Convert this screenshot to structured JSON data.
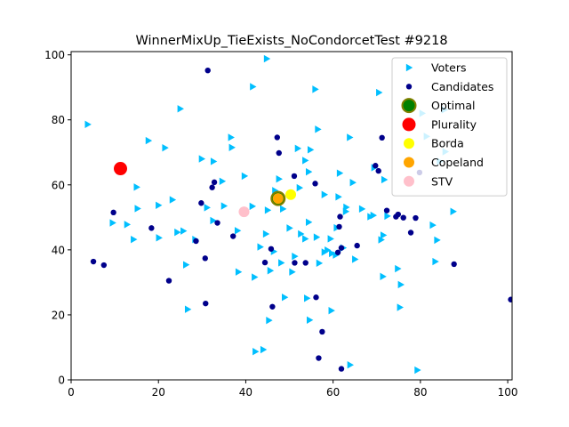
{
  "chart_data": {
    "type": "scatter",
    "title": "WinnerMixUp_TieExists_NoCondorcetTest #9218",
    "xlabel": "",
    "ylabel": "",
    "xlim": [
      0,
      101
    ],
    "ylim": [
      0,
      101
    ],
    "x_ticks": [
      0,
      20,
      40,
      60,
      80,
      100
    ],
    "y_ticks": [
      0,
      20,
      40,
      60,
      80,
      100
    ],
    "x_tick_labels": [
      "0",
      "20",
      "40",
      "60",
      "80",
      "100"
    ],
    "y_tick_labels": [
      "0",
      "20",
      "40",
      "60",
      "80",
      "100"
    ],
    "grid": false,
    "legend_position": "top-right",
    "series": [
      {
        "name": "Voters",
        "marker": "triangle-right",
        "color": "#00bfff",
        "points": [
          [
            3.8,
            78.6
          ],
          [
            9.5,
            48.3
          ],
          [
            12.8,
            47.8
          ],
          [
            14.3,
            43.2
          ],
          [
            15.0,
            59.3
          ],
          [
            15.2,
            52.7
          ],
          [
            17.7,
            73.6
          ],
          [
            20.0,
            53.7
          ],
          [
            20.1,
            43.7
          ],
          [
            21.5,
            71.4
          ],
          [
            23.2,
            55.4
          ],
          [
            24.3,
            45.4
          ],
          [
            25.0,
            83.4
          ],
          [
            25.7,
            45.8
          ],
          [
            26.3,
            35.4
          ],
          [
            26.7,
            21.7
          ],
          [
            28.4,
            43.2
          ],
          [
            29.9,
            68.0
          ],
          [
            31.1,
            53.0
          ],
          [
            32.6,
            67.2
          ],
          [
            32.5,
            49.0
          ],
          [
            34.6,
            61.1
          ],
          [
            35.0,
            53.5
          ],
          [
            36.6,
            74.6
          ],
          [
            36.8,
            71.5
          ],
          [
            38.1,
            45.9
          ],
          [
            38.3,
            33.2
          ],
          [
            39.7,
            62.7
          ],
          [
            41.6,
            90.2
          ],
          [
            41.5,
            53.4
          ],
          [
            42.2,
            8.7
          ],
          [
            42.0,
            31.6
          ],
          [
            43.3,
            40.9
          ],
          [
            44.0,
            9.3
          ],
          [
            44.6,
            44.9
          ],
          [
            44.8,
            98.8
          ],
          [
            45.0,
            52.2
          ],
          [
            45.3,
            18.3
          ],
          [
            45.6,
            33.6
          ],
          [
            46.7,
            58.2
          ],
          [
            46.4,
            39.5
          ],
          [
            47.6,
            61.8
          ],
          [
            48.5,
            52.6
          ],
          [
            48.9,
            25.4
          ],
          [
            48.1,
            36.0
          ],
          [
            50.0,
            46.7
          ],
          [
            50.6,
            33.2
          ],
          [
            51.2,
            38.0
          ],
          [
            51.9,
            71.2
          ],
          [
            52.3,
            59.1
          ],
          [
            52.6,
            44.9
          ],
          [
            53.6,
            67.5
          ],
          [
            53.6,
            43.4
          ],
          [
            54.0,
            25.1
          ],
          [
            54.4,
            48.5
          ],
          [
            54.6,
            18.4
          ],
          [
            54.4,
            64.0
          ],
          [
            54.8,
            70.8
          ],
          [
            55.9,
            89.4
          ],
          [
            56.2,
            43.9
          ],
          [
            56.5,
            77.1
          ],
          [
            56.8,
            35.9
          ],
          [
            58.0,
            39.3
          ],
          [
            58.0,
            57.0
          ],
          [
            58.7,
            39.9
          ],
          [
            59.4,
            43.4
          ],
          [
            59.6,
            21.3
          ],
          [
            59.7,
            38.9
          ],
          [
            60.6,
            38.4
          ],
          [
            60.8,
            46.8
          ],
          [
            61.2,
            56.3
          ],
          [
            61.5,
            63.6
          ],
          [
            62.3,
            40.6
          ],
          [
            62.9,
            51.8
          ],
          [
            63.0,
            53.1
          ],
          [
            63.8,
            74.6
          ],
          [
            63.9,
            4.6
          ],
          [
            64.5,
            60.7
          ],
          [
            65.0,
            37.1
          ],
          [
            66.6,
            52.6
          ],
          [
            68.5,
            50.2
          ],
          [
            69.2,
            50.6
          ],
          [
            69.4,
            65.3
          ],
          [
            70.5,
            88.4
          ],
          [
            71.0,
            43.1
          ],
          [
            71.4,
            31.8
          ],
          [
            71.5,
            44.5
          ],
          [
            71.7,
            61.6
          ],
          [
            72.4,
            50.4
          ],
          [
            74.8,
            34.2
          ],
          [
            75.3,
            22.3
          ],
          [
            75.5,
            29.3
          ],
          [
            79.3,
            3.0
          ],
          [
            80.4,
            82.0
          ],
          [
            81.4,
            74.9
          ],
          [
            82.8,
            47.6
          ],
          [
            83.4,
            36.4
          ],
          [
            83.8,
            43.0
          ],
          [
            84.4,
            67.2
          ],
          [
            85.7,
            70.2
          ],
          [
            87.5,
            51.8
          ],
          [
            85.5,
            83.1
          ]
        ]
      },
      {
        "name": "Candidates",
        "marker": "circle",
        "color": "#00008b",
        "points": [
          [
            5.1,
            36.4
          ],
          [
            7.5,
            35.3
          ],
          [
            9.7,
            51.5
          ],
          [
            18.4,
            46.7
          ],
          [
            22.4,
            30.5
          ],
          [
            28.6,
            42.7
          ],
          [
            29.8,
            54.4
          ],
          [
            30.7,
            37.4
          ],
          [
            30.8,
            23.5
          ],
          [
            31.3,
            95.2
          ],
          [
            32.3,
            59.2
          ],
          [
            32.8,
            60.8
          ],
          [
            33.5,
            48.3
          ],
          [
            37.1,
            44.2
          ],
          [
            44.4,
            36.1
          ],
          [
            45.8,
            40.3
          ],
          [
            46.1,
            22.5
          ],
          [
            47.2,
            74.6
          ],
          [
            47.6,
            69.8
          ],
          [
            51.1,
            62.7
          ],
          [
            51.2,
            36.0
          ],
          [
            53.7,
            36.0
          ],
          [
            55.9,
            60.4
          ],
          [
            56.1,
            25.4
          ],
          [
            56.7,
            6.7
          ],
          [
            57.5,
            14.8
          ],
          [
            61.1,
            39.2
          ],
          [
            61.4,
            47.1
          ],
          [
            61.6,
            50.2
          ],
          [
            61.9,
            40.6
          ],
          [
            61.9,
            3.4
          ],
          [
            65.5,
            41.3
          ],
          [
            69.7,
            65.9
          ],
          [
            70.4,
            64.3
          ],
          [
            71.2,
            74.5
          ],
          [
            72.3,
            52.1
          ],
          [
            74.4,
            50.2
          ],
          [
            74.9,
            50.9
          ],
          [
            76.1,
            49.9
          ],
          [
            77.8,
            45.3
          ],
          [
            78.9,
            49.8
          ],
          [
            79.8,
            63.8
          ],
          [
            87.7,
            35.6
          ],
          [
            100.7,
            24.7
          ]
        ]
      },
      {
        "name": "Optimal",
        "marker": "circle-large",
        "color": "#008000",
        "edge": "#808000",
        "points": [
          [
            47.4,
            55.8
          ]
        ]
      },
      {
        "name": "Plurality",
        "marker": "circle-large",
        "color": "#ff0000",
        "points": [
          [
            11.3,
            65.0
          ]
        ]
      },
      {
        "name": "Borda",
        "marker": "circle-medium",
        "color": "#ffff00",
        "points": [
          [
            50.3,
            57.0
          ]
        ]
      },
      {
        "name": "Copeland",
        "marker": "circle-medium",
        "color": "#ffa500",
        "points": [
          [
            47.4,
            55.8
          ]
        ]
      },
      {
        "name": "STV",
        "marker": "circle-medium",
        "color": "#ffc0cb",
        "points": [
          [
            39.6,
            51.7
          ]
        ]
      }
    ]
  }
}
